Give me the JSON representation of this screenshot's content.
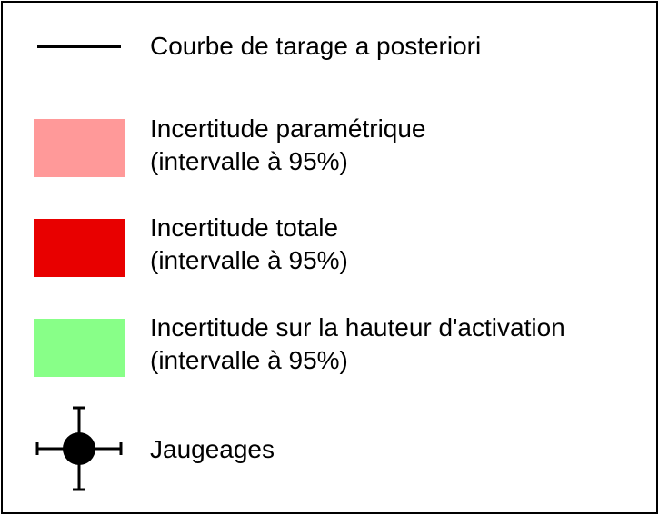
{
  "legend": {
    "items": [
      {
        "symbol": "line",
        "color": "#000000",
        "label_line1": "Courbe de tarage a posteriori",
        "label_line2": ""
      },
      {
        "symbol": "swatch",
        "color": "#ff9999",
        "label_line1": "Incertitude paramétrique",
        "label_line2": "(intervalle à 95%)"
      },
      {
        "symbol": "swatch",
        "color": "#e80000",
        "label_line1": "Incertitude totale",
        "label_line2": "(intervalle à 95%)"
      },
      {
        "symbol": "swatch",
        "color": "#88ff88",
        "label_line1": "Incertitude sur la hauteur d'activation",
        "label_line2": "(intervalle à 95%)"
      },
      {
        "symbol": "point-with-errorbars",
        "color": "#000000",
        "label_line1": "Jaugeages",
        "label_line2": ""
      }
    ]
  }
}
